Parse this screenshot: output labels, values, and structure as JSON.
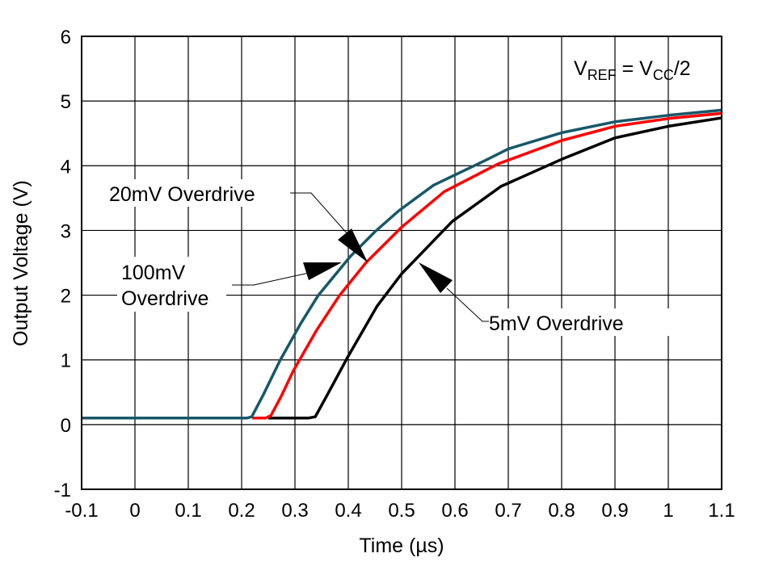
{
  "chart_data": {
    "type": "line",
    "title": "",
    "xlabel": "Time (µs)",
    "ylabel": "Output Voltage (V)",
    "xlim": [
      -0.1,
      1.1
    ],
    "ylim": [
      -1,
      6
    ],
    "xticks": [
      "-0.1",
      "0",
      "0.1",
      "0.2",
      "0.3",
      "0.4",
      "0.5",
      "0.6",
      "0.7",
      "0.8",
      "0.9",
      "1",
      "1.1"
    ],
    "yticks": [
      "-1",
      "0",
      "1",
      "2",
      "3",
      "4",
      "5",
      "6"
    ],
    "grid": true,
    "annotation": {
      "main": "V",
      "sub1": "REF",
      "mid": " = V",
      "sub2": "CC",
      "end": "/2"
    },
    "series": [
      {
        "name": "100mV Overdrive",
        "color": "#175868",
        "x": [
          -0.1,
          0.21,
          0.219,
          0.24,
          0.272,
          0.31,
          0.343,
          0.404,
          0.45,
          0.494,
          0.56,
          0.656,
          0.7,
          0.8,
          0.9,
          1.0,
          1.1
        ],
        "y": [
          0.1,
          0.1,
          0.12,
          0.45,
          0.99,
          1.55,
          1.99,
          2.6,
          2.98,
          3.3,
          3.7,
          4.08,
          4.26,
          4.51,
          4.68,
          4.78,
          4.86
        ]
      },
      {
        "name": "20mV Overdrive",
        "color": "#ff0000",
        "x": [
          0.22,
          0.245,
          0.255,
          0.275,
          0.297,
          0.34,
          0.383,
          0.434,
          0.5,
          0.58,
          0.681,
          0.8,
          0.9,
          1.0,
          1.1
        ],
        "y": [
          0.1,
          0.1,
          0.14,
          0.45,
          0.83,
          1.45,
          1.99,
          2.51,
          3.05,
          3.6,
          4.03,
          4.39,
          4.61,
          4.73,
          4.81
        ]
      },
      {
        "name": "5mV Overdrive",
        "color": "#000000",
        "x": [
          0.25,
          0.325,
          0.338,
          0.36,
          0.398,
          0.454,
          0.5,
          0.595,
          0.686,
          0.8,
          0.9,
          1.0,
          1.1
        ],
        "y": [
          0.1,
          0.1,
          0.12,
          0.45,
          1.03,
          1.83,
          2.33,
          3.14,
          3.68,
          4.1,
          4.43,
          4.61,
          4.74
        ]
      }
    ],
    "labels": {
      "overdrive_20mv": "20mV Overdrive",
      "overdrive_100mv_line1": "100mV",
      "overdrive_100mv_line2": "Overdrive",
      "overdrive_5mv": "5mV Overdrive"
    }
  }
}
